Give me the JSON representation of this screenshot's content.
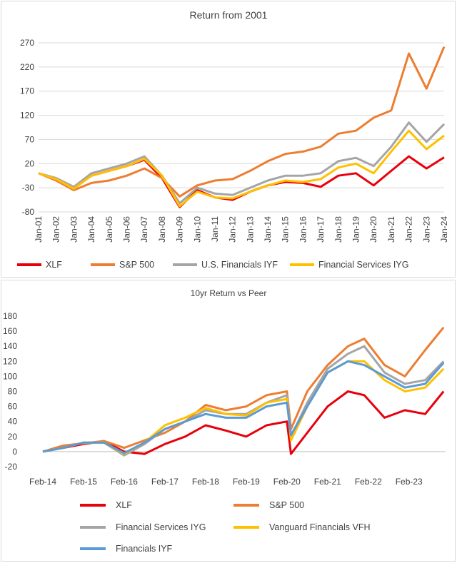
{
  "chart_data": [
    {
      "type": "line",
      "title": "Return from 2001",
      "xlabel": "",
      "ylabel": "",
      "ylim": [
        -80,
        270
      ],
      "yticks": [
        270,
        220,
        170,
        120,
        70,
        20,
        -30,
        -80
      ],
      "xtick_labels": [
        "Jan-01",
        "Jan-02",
        "Jan-03",
        "Jan-04",
        "Jan-05",
        "Jan-06",
        "Jan-07",
        "Jan-08",
        "Jan-09",
        "Jan-10",
        "Jan-11",
        "Jan-12",
        "Jan-13",
        "Jan-14",
        "Jan-15",
        "Jan-16",
        "Jan-17",
        "Jan-18",
        "Jan-19",
        "Jan-20",
        "Jan-21",
        "Jan-22",
        "Jan-23",
        "Jan-24"
      ],
      "grid": true,
      "legend_position": "bottom",
      "x": [
        2001,
        2002,
        2003,
        2004,
        2005,
        2006,
        2007,
        2008,
        2009,
        2010,
        2011,
        2012,
        2013,
        2014,
        2015,
        2016,
        2017,
        2018,
        2019,
        2020,
        2021,
        2022,
        2023,
        2024
      ],
      "series": [
        {
          "name": "XLF",
          "color": "#e8000b",
          "values": [
            0,
            -12,
            -30,
            -5,
            5,
            15,
            28,
            -10,
            -70,
            -35,
            -50,
            -55,
            -38,
            -25,
            -18,
            -20,
            -28,
            -5,
            0,
            -25,
            5,
            35,
            10,
            33
          ]
        },
        {
          "name": "S&P 500",
          "color": "#ed7d31",
          "values": [
            0,
            -15,
            -35,
            -20,
            -15,
            -5,
            10,
            -10,
            -48,
            -25,
            -15,
            -12,
            5,
            25,
            40,
            45,
            55,
            82,
            88,
            115,
            130,
            248,
            175,
            262
          ]
        },
        {
          "name": "U.S. Financials IYF",
          "color": "#a5a5a5",
          "values": [
            0,
            -10,
            -28,
            0,
            10,
            20,
            35,
            -5,
            -62,
            -30,
            -42,
            -45,
            -30,
            -15,
            -5,
            -5,
            0,
            25,
            32,
            15,
            55,
            105,
            65,
            102
          ]
        },
        {
          "name": "Financial Services IYG",
          "color": "#ffc000",
          "values": [
            0,
            -12,
            -32,
            -5,
            5,
            15,
            30,
            -5,
            -68,
            -38,
            -50,
            -52,
            -38,
            -25,
            -15,
            -18,
            -12,
            12,
            20,
            0,
            45,
            88,
            50,
            78
          ]
        }
      ]
    },
    {
      "type": "line",
      "title": "10yr Return vs Peer",
      "xlabel": "",
      "ylabel": "",
      "ylim": [
        -20,
        180
      ],
      "yticks": [
        180,
        160,
        140,
        120,
        100,
        80,
        60,
        40,
        20,
        0,
        -20
      ],
      "xtick_labels": [
        "Feb-14",
        "Feb-15",
        "Feb-16",
        "Feb-17",
        "Feb-18",
        "Feb-19",
        "Feb-20",
        "Feb-21",
        "Feb-22",
        "Feb-23"
      ],
      "grid": false,
      "legend_position": "bottom",
      "x": [
        2014.1,
        2014.6,
        2015.1,
        2015.6,
        2016.1,
        2016.6,
        2017.1,
        2017.6,
        2018.1,
        2018.6,
        2019.1,
        2019.6,
        2020.1,
        2020.2,
        2020.6,
        2021.1,
        2021.6,
        2022.0,
        2022.5,
        2023.0,
        2023.5,
        2023.95
      ],
      "series": [
        {
          "name": "XLF",
          "color": "#e8000b",
          "values": [
            0,
            5,
            10,
            14,
            0,
            -3,
            10,
            20,
            35,
            28,
            20,
            35,
            40,
            -3,
            25,
            60,
            80,
            75,
            45,
            55,
            50,
            80
          ]
        },
        {
          "name": "S&P 500",
          "color": "#ed7d31",
          "values": [
            0,
            8,
            11,
            14,
            5,
            15,
            25,
            40,
            62,
            55,
            60,
            75,
            80,
            30,
            80,
            115,
            140,
            150,
            115,
            100,
            135,
            165
          ]
        },
        {
          "name": "Financial Services IYG",
          "color": "#a5a5a5",
          "values": [
            0,
            5,
            12,
            12,
            -5,
            10,
            30,
            40,
            55,
            50,
            50,
            65,
            75,
            20,
            65,
            110,
            130,
            140,
            105,
            90,
            95,
            120
          ]
        },
        {
          "name": "Vanguard Financials VFH",
          "color": "#ffc000",
          "values": [
            0,
            5,
            12,
            12,
            -3,
            12,
            35,
            45,
            58,
            50,
            48,
            65,
            70,
            15,
            60,
            105,
            120,
            120,
            95,
            80,
            85,
            110
          ]
        },
        {
          "name": "Financials IYF",
          "color": "#5b9bd5",
          "values": [
            0,
            5,
            12,
            12,
            -2,
            12,
            30,
            40,
            50,
            45,
            45,
            60,
            65,
            22,
            60,
            105,
            120,
            115,
            100,
            85,
            90,
            118
          ]
        }
      ]
    }
  ]
}
